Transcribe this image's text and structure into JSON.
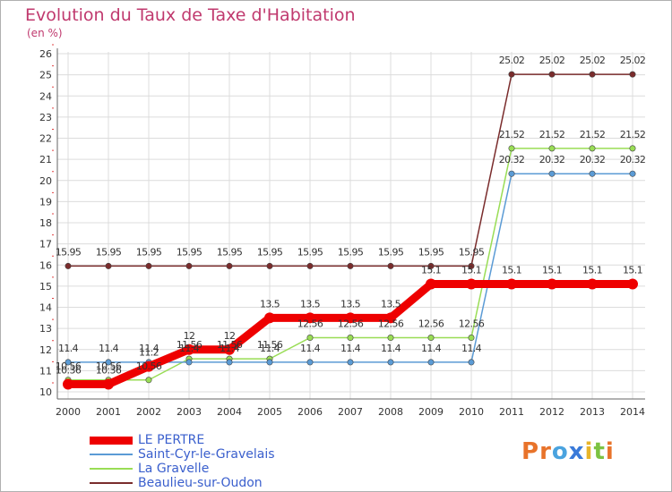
{
  "chart_data": {
    "type": "line",
    "title": "Evolution du Taux de Taxe d'Habitation",
    "unit_label": "(en %)",
    "x": [
      "2000",
      "2001",
      "2002",
      "2003",
      "2004",
      "2005",
      "2006",
      "2007",
      "2008",
      "2009",
      "2010",
      "2011",
      "2012",
      "2013",
      "2014"
    ],
    "ylim": [
      10,
      26
    ],
    "yticks": [
      "10",
      "11",
      "12",
      "13",
      "14",
      "15",
      "16",
      "17",
      "18",
      "19",
      "20",
      "21",
      "22",
      "23",
      "24",
      "25",
      "26"
    ],
    "grid": true,
    "legend_position": "bottom-left",
    "series": [
      {
        "name": "LE PERTRE",
        "color": "#ee0000",
        "values": [
          10.36,
          10.36,
          11.2,
          12,
          12,
          13.5,
          13.5,
          13.5,
          13.5,
          15.1,
          15.1,
          15.1,
          15.1,
          15.1,
          15.1
        ],
        "labels": [
          "10.36",
          "10.36",
          "11.2",
          "12",
          "12",
          "13.5",
          "13.5",
          "13.5",
          "13.5",
          "15.1",
          "15.1",
          "15.1",
          "15.1",
          "15.1",
          "15.1"
        ]
      },
      {
        "name": "Saint-Cyr-le-Gravelais",
        "color": "#5b9bd5",
        "values": [
          11.4,
          11.4,
          11.4,
          11.4,
          11.4,
          11.4,
          11.4,
          11.4,
          11.4,
          11.4,
          11.4,
          20.32,
          20.32,
          20.32,
          20.32
        ],
        "labels": [
          "11.4",
          "11.4",
          "11.4",
          "11.4",
          "11.4",
          "11.4",
          "11.4",
          "11.4",
          "11.4",
          "11.4",
          "11.4",
          "20.32",
          "20.32",
          "20.32",
          "20.32"
        ]
      },
      {
        "name": "La Gravelle",
        "color": "#99dd55",
        "values": [
          10.56,
          10.56,
          10.56,
          11.56,
          11.56,
          11.56,
          12.56,
          12.56,
          12.56,
          12.56,
          12.56,
          21.52,
          21.52,
          21.52,
          21.52
        ],
        "labels": [
          "10.56",
          "10.56",
          "10.56",
          "11.56",
          "11.56",
          "11.56",
          "12.56",
          "12.56",
          "12.56",
          "12.56",
          "12.56",
          "21.52",
          "21.52",
          "21.52",
          "21.52"
        ]
      },
      {
        "name": "Beaulieu-sur-Oudon",
        "color": "#7a2c2c",
        "values": [
          15.95,
          15.95,
          15.95,
          15.95,
          15.95,
          15.95,
          15.95,
          15.95,
          15.95,
          15.95,
          15.95,
          25.02,
          25.02,
          25.02,
          25.02
        ],
        "labels": [
          "15.95",
          "15.95",
          "15.95",
          "15.95",
          "15.95",
          "15.95",
          "15.95",
          "15.95",
          "15.95",
          "15.95",
          "15.95",
          "25.02",
          "25.02",
          "25.02",
          "25.02"
        ]
      }
    ]
  },
  "logo": {
    "text": "Proxiti",
    "colors": [
      "#e8732a",
      "#e8732a",
      "#4aa3df",
      "#3a7ad9",
      "#e8b52a",
      "#7cc242",
      "#e8732a"
    ]
  }
}
